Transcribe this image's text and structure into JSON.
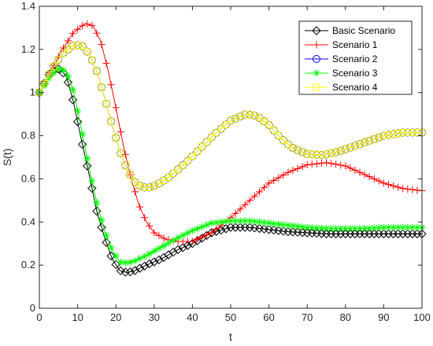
{
  "chart_data": {
    "type": "line",
    "xlabel": "t",
    "ylabel": "S(t)",
    "xlim": [
      0,
      100
    ],
    "ylim": [
      0,
      1.4
    ],
    "xticks": [
      0,
      10,
      20,
      30,
      40,
      50,
      60,
      70,
      80,
      90,
      100
    ],
    "yticks": [
      0,
      0.2,
      0.4,
      0.6,
      0.8,
      1,
      1.2,
      1.4
    ],
    "xtick_labels": [
      "0",
      "10",
      "20",
      "30",
      "40",
      "50",
      "60",
      "70",
      "80",
      "90",
      "100"
    ],
    "ytick_labels": [
      "0",
      "0.2",
      "0.4",
      "0.6",
      "0.8",
      "1",
      "1.2",
      "1.4"
    ],
    "grid": false,
    "legend_position": "top-right",
    "series": [
      {
        "name": "Basic Scenario",
        "color": "#000000",
        "marker": "diamond",
        "points": [
          [
            0,
            1.0
          ],
          [
            3,
            1.1
          ],
          [
            5,
            1.11
          ],
          [
            7,
            1.08
          ],
          [
            9,
            0.95
          ],
          [
            11,
            0.78
          ],
          [
            13,
            0.62
          ],
          [
            15,
            0.45
          ],
          [
            17,
            0.33
          ],
          [
            19,
            0.23
          ],
          [
            21,
            0.175
          ],
          [
            23,
            0.165
          ],
          [
            25,
            0.175
          ],
          [
            28,
            0.2
          ],
          [
            32,
            0.23
          ],
          [
            36,
            0.27
          ],
          [
            40,
            0.3
          ],
          [
            45,
            0.35
          ],
          [
            50,
            0.375
          ],
          [
            55,
            0.375
          ],
          [
            60,
            0.365
          ],
          [
            65,
            0.355
          ],
          [
            70,
            0.35
          ],
          [
            75,
            0.345
          ],
          [
            80,
            0.345
          ],
          [
            85,
            0.345
          ],
          [
            90,
            0.345
          ],
          [
            95,
            0.345
          ],
          [
            100,
            0.345
          ]
        ]
      },
      {
        "name": "Scenario 1",
        "color": "#ff0000",
        "marker": "plus",
        "points": [
          [
            0,
            1.0
          ],
          [
            3,
            1.1
          ],
          [
            6,
            1.2
          ],
          [
            9,
            1.28
          ],
          [
            12,
            1.32
          ],
          [
            14,
            1.31
          ],
          [
            16,
            1.24
          ],
          [
            18,
            1.1
          ],
          [
            20,
            0.93
          ],
          [
            22,
            0.75
          ],
          [
            24,
            0.6
          ],
          [
            26,
            0.48
          ],
          [
            28,
            0.4
          ],
          [
            30,
            0.35
          ],
          [
            33,
            0.32
          ],
          [
            36,
            0.31
          ],
          [
            40,
            0.31
          ],
          [
            45,
            0.35
          ],
          [
            50,
            0.42
          ],
          [
            55,
            0.5
          ],
          [
            60,
            0.58
          ],
          [
            65,
            0.63
          ],
          [
            70,
            0.665
          ],
          [
            75,
            0.675
          ],
          [
            80,
            0.66
          ],
          [
            85,
            0.62
          ],
          [
            90,
            0.58
          ],
          [
            95,
            0.555
          ],
          [
            100,
            0.545
          ]
        ]
      },
      {
        "name": "Scenario 2",
        "color": "#0000ff",
        "marker": "circle",
        "points": [
          [
            0,
            1.0
          ],
          [
            3,
            1.1
          ],
          [
            6,
            1.18
          ],
          [
            9,
            1.22
          ],
          [
            11,
            1.22
          ],
          [
            13,
            1.18
          ],
          [
            15,
            1.1
          ],
          [
            17,
            0.98
          ],
          [
            19,
            0.85
          ],
          [
            21,
            0.73
          ],
          [
            23,
            0.64
          ],
          [
            25,
            0.585
          ],
          [
            27,
            0.56
          ],
          [
            29,
            0.56
          ],
          [
            31,
            0.575
          ],
          [
            34,
            0.61
          ],
          [
            38,
            0.67
          ],
          [
            42,
            0.74
          ],
          [
            46,
            0.81
          ],
          [
            50,
            0.87
          ],
          [
            54,
            0.9
          ],
          [
            57,
            0.89
          ],
          [
            60,
            0.85
          ],
          [
            63,
            0.79
          ],
          [
            66,
            0.745
          ],
          [
            70,
            0.715
          ],
          [
            74,
            0.71
          ],
          [
            78,
            0.725
          ],
          [
            82,
            0.75
          ],
          [
            86,
            0.775
          ],
          [
            90,
            0.8
          ],
          [
            95,
            0.815
          ],
          [
            100,
            0.815
          ]
        ]
      },
      {
        "name": "Scenario 3",
        "color": "#00ff00",
        "marker": "star",
        "points": [
          [
            0,
            1.0
          ],
          [
            3,
            1.08
          ],
          [
            5,
            1.11
          ],
          [
            7,
            1.1
          ],
          [
            9,
            1.0
          ],
          [
            11,
            0.83
          ],
          [
            13,
            0.65
          ],
          [
            15,
            0.49
          ],
          [
            17,
            0.36
          ],
          [
            19,
            0.27
          ],
          [
            21,
            0.215
          ],
          [
            23,
            0.21
          ],
          [
            25,
            0.22
          ],
          [
            28,
            0.245
          ],
          [
            32,
            0.285
          ],
          [
            36,
            0.325
          ],
          [
            40,
            0.36
          ],
          [
            45,
            0.395
          ],
          [
            50,
            0.405
          ],
          [
            55,
            0.405
          ],
          [
            60,
            0.395
          ],
          [
            65,
            0.385
          ],
          [
            70,
            0.375
          ],
          [
            75,
            0.37
          ],
          [
            80,
            0.37
          ],
          [
            85,
            0.37
          ],
          [
            90,
            0.375
          ],
          [
            95,
            0.375
          ],
          [
            100,
            0.375
          ]
        ]
      },
      {
        "name": "Scenario 4",
        "color": "#ffff00",
        "marker": "square",
        "points": [
          [
            0,
            1.0
          ],
          [
            3,
            1.1
          ],
          [
            6,
            1.18
          ],
          [
            9,
            1.22
          ],
          [
            11,
            1.22
          ],
          [
            13,
            1.18
          ],
          [
            15,
            1.1
          ],
          [
            17,
            0.98
          ],
          [
            19,
            0.85
          ],
          [
            21,
            0.73
          ],
          [
            23,
            0.64
          ],
          [
            25,
            0.585
          ],
          [
            27,
            0.56
          ],
          [
            29,
            0.56
          ],
          [
            31,
            0.575
          ],
          [
            34,
            0.61
          ],
          [
            38,
            0.67
          ],
          [
            42,
            0.74
          ],
          [
            46,
            0.81
          ],
          [
            50,
            0.87
          ],
          [
            54,
            0.9
          ],
          [
            57,
            0.89
          ],
          [
            60,
            0.85
          ],
          [
            63,
            0.79
          ],
          [
            66,
            0.745
          ],
          [
            70,
            0.715
          ],
          [
            74,
            0.71
          ],
          [
            78,
            0.725
          ],
          [
            82,
            0.75
          ],
          [
            86,
            0.775
          ],
          [
            90,
            0.8
          ],
          [
            95,
            0.815
          ],
          [
            100,
            0.815
          ]
        ]
      }
    ]
  }
}
